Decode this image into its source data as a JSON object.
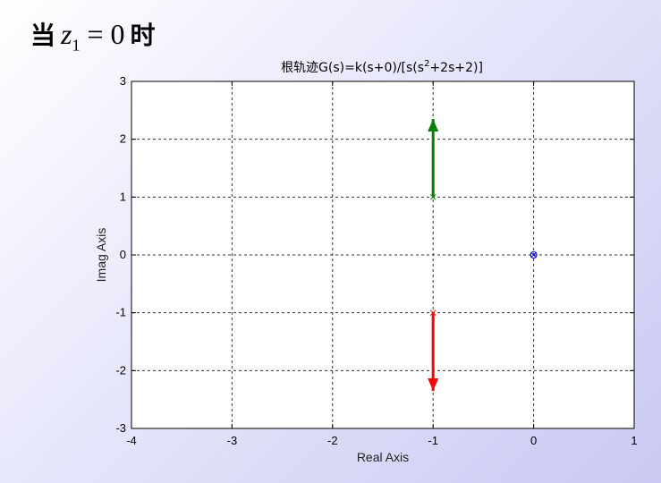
{
  "heading": {
    "prefix": "当",
    "variable": "z",
    "subscript": "1",
    "equals": "= 0",
    "suffix": "时"
  },
  "chart_data": {
    "type": "line",
    "title_prefix": "根轨迹G(s)=k(s+0)/[s(s",
    "title_superscript": "2",
    "title_suffix": "+2s+2)]",
    "xlabel": "Real Axis",
    "ylabel": "Imag Axis",
    "xlim": [
      -4,
      1
    ],
    "ylim": [
      -3,
      3
    ],
    "xticks": [
      -4,
      -3,
      -2,
      -1,
      0,
      1
    ],
    "yticks": [
      -3,
      -2,
      -1,
      0,
      1,
      2,
      3
    ],
    "grid": true,
    "series": [
      {
        "color": "#008000",
        "x": [
          -1,
          -1
        ],
        "y": [
          1,
          2.35
        ],
        "arrow": "end"
      },
      {
        "color": "#ff0000",
        "x": [
          -1,
          -1
        ],
        "y": [
          -1,
          -2.35
        ],
        "arrow": "end"
      }
    ],
    "markers": [
      {
        "x": 0,
        "y": 0,
        "shape": "circle",
        "color": "#0000ff"
      },
      {
        "x": 0,
        "y": 0,
        "shape": "x",
        "color": "#0000ff"
      },
      {
        "x": -1,
        "y": 1,
        "shape": "x",
        "color": "#008000"
      },
      {
        "x": -1,
        "y": -1,
        "shape": "x",
        "color": "#ff0000"
      }
    ]
  }
}
